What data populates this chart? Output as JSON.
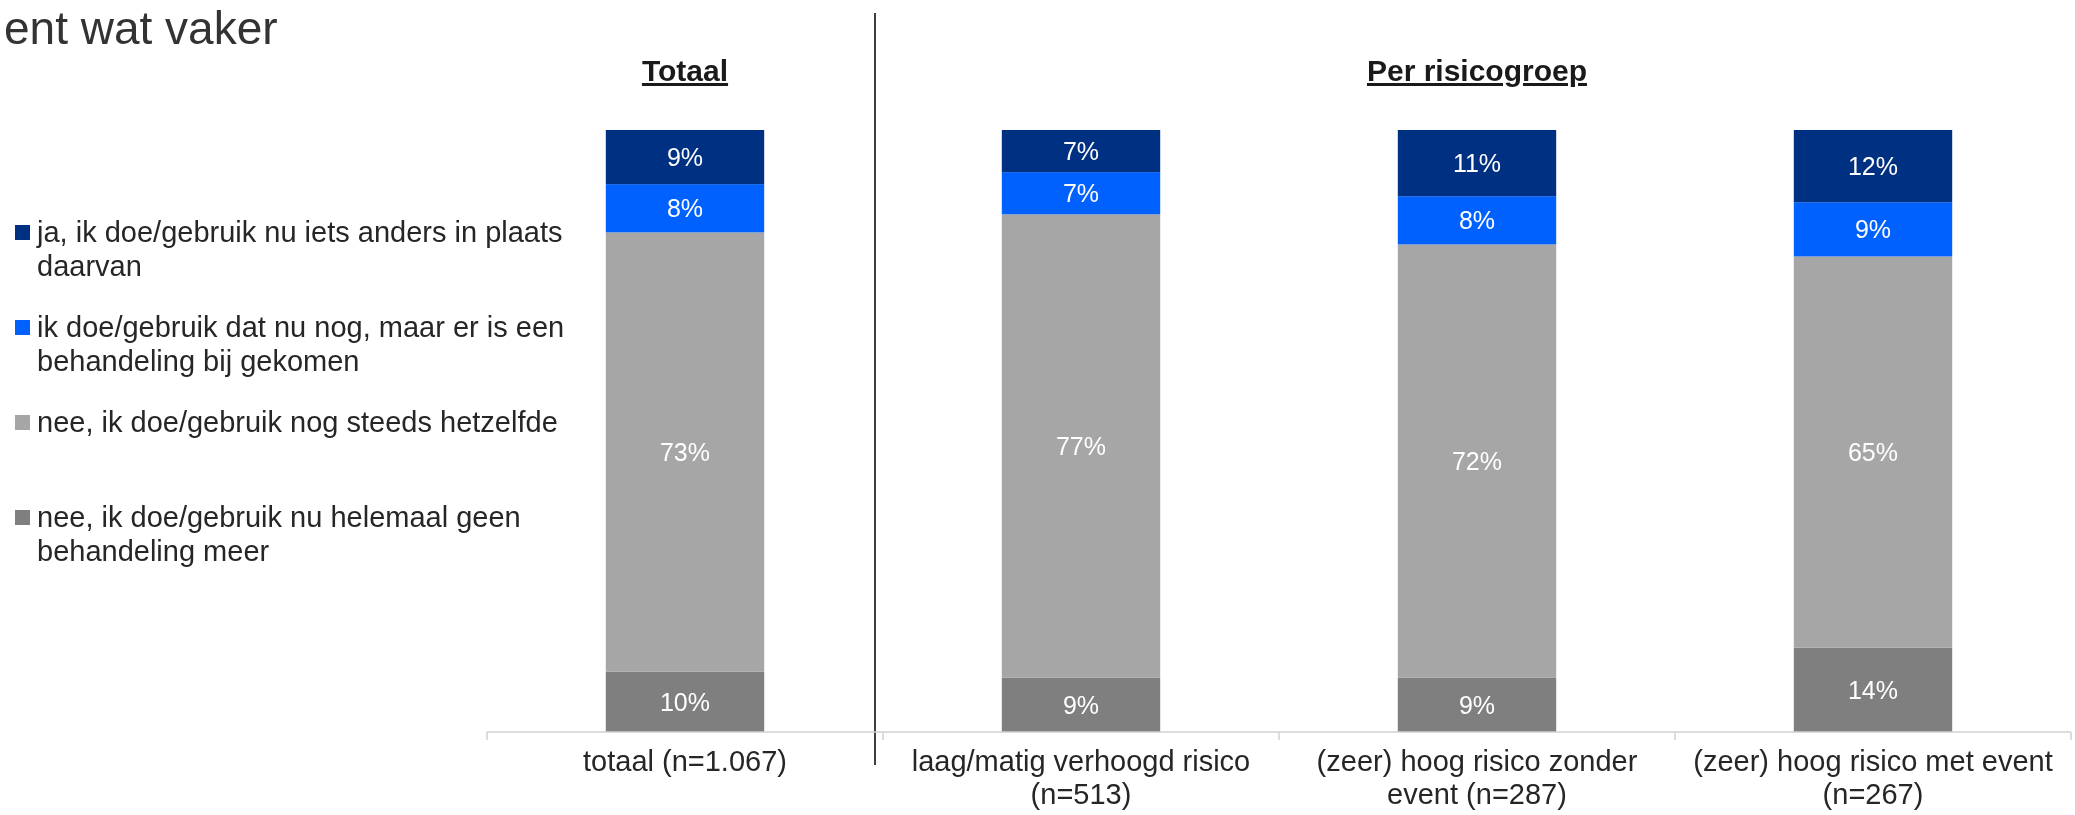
{
  "chart_data": {
    "type": "bar",
    "title": "ent wat vaker",
    "categories": [
      "totaal (n=1.067)",
      "laag/matig verhoogd risico (n=513)",
      "(zeer) hoog risico zonder event (n=287)",
      "(zeer) hoog risico met event (n=267)"
    ],
    "stacked": true,
    "series": [
      {
        "name": "nee, ik doe/gebruik nu helemaal geen behandeling meer",
        "color": "#7f7f7f",
        "values": [
          10,
          9,
          9,
          14
        ],
        "value_labels": [
          "10%",
          "9%",
          "9%",
          "14%"
        ]
      },
      {
        "name": "nee, ik doe/gebruik nog steeds hetzelfde",
        "color": "#a6a6a6",
        "values": [
          73,
          77,
          72,
          65
        ],
        "value_labels": [
          "73%",
          "77%",
          "72%",
          "65%"
        ]
      },
      {
        "name": "ik doe/gebruik dat nu nog, maar er is een behandeling bij gekomen",
        "color": "#0061ff",
        "values": [
          8,
          7,
          8,
          9
        ],
        "value_labels": [
          "8%",
          "7%",
          "8%",
          "9%"
        ]
      },
      {
        "name": "ja, ik doe/gebruik nu iets anders in plaats daarvan",
        "color": "#003082",
        "values": [
          9,
          7,
          11,
          12
        ],
        "value_labels": [
          "9%",
          "7%",
          "11%",
          "12%"
        ]
      }
    ],
    "legend": "left",
    "annotations": [
      "Totaal",
      "Per risicogroep"
    ]
  }
}
